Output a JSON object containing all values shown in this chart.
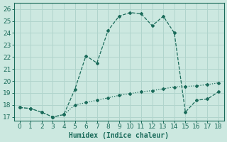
{
  "xlabel": "Humidex (Indice chaleur)",
  "xlim": [
    -0.5,
    18.5
  ],
  "ylim": [
    16.7,
    26.5
  ],
  "xticks": [
    0,
    1,
    2,
    3,
    4,
    5,
    6,
    7,
    8,
    9,
    10,
    11,
    12,
    13,
    14,
    15,
    16,
    17,
    18
  ],
  "yticks": [
    17,
    18,
    19,
    20,
    21,
    22,
    23,
    24,
    25,
    26
  ],
  "bg_color": "#cce8e0",
  "line_color": "#1a6b5a",
  "grid_color": "#b0d4cc",
  "line1_x": [
    0,
    1,
    2,
    3,
    4,
    5,
    6,
    7,
    8,
    9,
    10,
    11,
    12,
    13,
    14,
    15,
    16,
    17,
    18
  ],
  "line1_y": [
    17.8,
    17.7,
    17.4,
    17.0,
    17.2,
    19.3,
    22.1,
    21.5,
    24.2,
    25.4,
    25.7,
    25.6,
    24.6,
    25.4,
    24.0,
    17.4,
    18.4,
    18.5,
    19.1
  ],
  "line2_x": [
    0,
    1,
    2,
    3,
    4,
    5,
    6,
    7,
    8,
    9,
    10,
    11,
    12,
    13,
    14,
    15,
    16,
    17,
    18
  ],
  "line2_y": [
    17.8,
    17.7,
    17.4,
    17.0,
    17.2,
    18.0,
    18.2,
    18.4,
    18.6,
    18.8,
    18.95,
    19.1,
    19.2,
    19.35,
    19.5,
    19.55,
    19.6,
    19.7,
    19.85
  ],
  "font_size": 7,
  "tick_fontsize": 6.5
}
